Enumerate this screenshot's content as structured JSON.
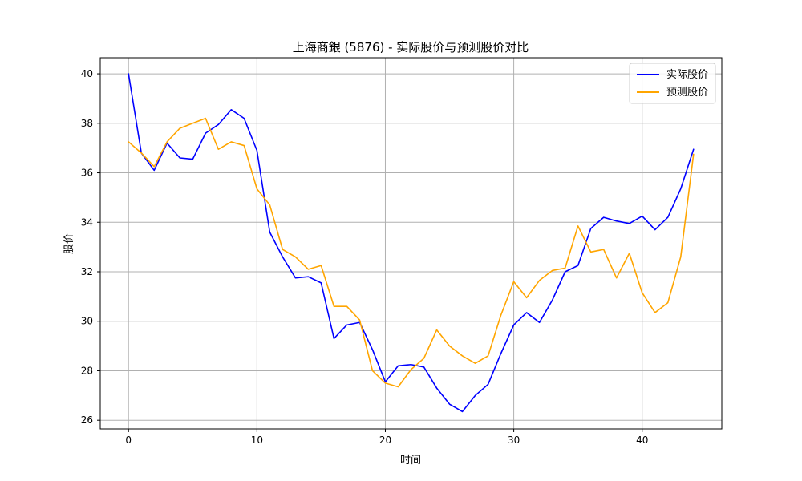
{
  "chart_data": {
    "type": "line",
    "title": "上海商銀 (5876) - 实际股价与预测股价对比",
    "xlabel": "时间",
    "ylabel": "股价",
    "xlim": [
      -2.2,
      46.2
    ],
    "ylim": [
      25.65,
      40.65
    ],
    "x_ticks": [
      0,
      10,
      20,
      30,
      40
    ],
    "y_ticks": [
      26,
      28,
      30,
      32,
      34,
      36,
      38,
      40
    ],
    "grid": true,
    "legend_position": "top-right",
    "x": [
      0,
      1,
      2,
      3,
      4,
      5,
      6,
      7,
      8,
      9,
      10,
      11,
      12,
      13,
      14,
      15,
      16,
      17,
      18,
      19,
      20,
      21,
      22,
      23,
      24,
      25,
      26,
      27,
      28,
      29,
      30,
      31,
      32,
      33,
      34,
      35,
      36,
      37,
      38,
      39,
      40,
      41,
      42,
      43,
      44
    ],
    "series": [
      {
        "name": "实际股价",
        "color": "#0000ff",
        "values": [
          40.0,
          36.8,
          36.1,
          37.2,
          36.6,
          36.55,
          37.6,
          37.95,
          38.55,
          38.2,
          36.9,
          33.6,
          32.6,
          31.75,
          31.8,
          31.55,
          29.3,
          29.85,
          29.95,
          28.85,
          27.55,
          28.2,
          28.25,
          28.15,
          27.3,
          26.65,
          26.35,
          27.0,
          27.45,
          28.7,
          29.85,
          30.35,
          29.95,
          30.85,
          32.0,
          32.25,
          33.75,
          34.2,
          34.05,
          33.95,
          34.25,
          33.7,
          34.2,
          35.35,
          36.95
        ]
      },
      {
        "name": "预测股价",
        "color": "#ffa500",
        "values": [
          37.25,
          36.8,
          36.25,
          37.25,
          37.8,
          38.0,
          38.2,
          36.95,
          37.25,
          37.1,
          35.35,
          34.7,
          32.9,
          32.6,
          32.1,
          32.25,
          30.6,
          30.6,
          30.05,
          28.0,
          27.5,
          27.35,
          28.05,
          28.5,
          29.65,
          29.0,
          28.6,
          28.3,
          28.6,
          30.25,
          31.6,
          30.95,
          31.65,
          32.05,
          32.15,
          33.85,
          32.8,
          32.9,
          31.75,
          32.75,
          31.15,
          30.35,
          30.75,
          32.6,
          36.75
        ]
      }
    ]
  }
}
